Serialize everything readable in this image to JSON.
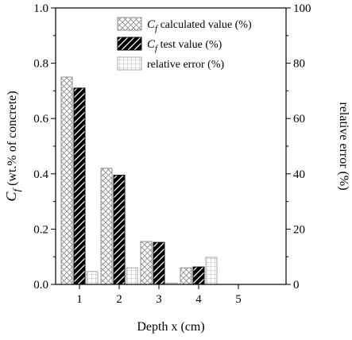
{
  "chart_data": {
    "type": "bar",
    "categories": [
      "1",
      "2",
      "3",
      "4",
      "5"
    ],
    "xlabel": "Depth x (cm)",
    "ylabel_symbol": "C",
    "ylabel_subscript": "f",
    "ylabel_rest": " (wt.% of concrete)",
    "y2label": "relative error (%)",
    "ylim": [
      0,
      1.0
    ],
    "y2lim": [
      0,
      100
    ],
    "yticks": [
      "0.0",
      "0.2",
      "0.4",
      "0.6",
      "0.8",
      "1.0"
    ],
    "y2ticks": [
      "0",
      "20",
      "40",
      "60",
      "80",
      "100"
    ],
    "legend_position": "top-right",
    "grid": false,
    "series": [
      {
        "label_symbol": "C",
        "label_subscript": "f",
        "label_rest": " calculated value (%)",
        "axis": "left",
        "pattern": "crosshatch",
        "values": [
          0.75,
          0.42,
          0.155,
          0.06,
          0
        ]
      },
      {
        "label_symbol": "C",
        "label_subscript": "f",
        "label_rest": " test value (%)",
        "axis": "left",
        "pattern": "black-diagonal",
        "values": [
          0.71,
          0.395,
          0.152,
          0.063,
          0
        ]
      },
      {
        "label_rest": "relative error (%)",
        "axis": "right",
        "pattern": "grid",
        "values": [
          4.7,
          6.0,
          0.5,
          9.8,
          0
        ]
      }
    ]
  }
}
